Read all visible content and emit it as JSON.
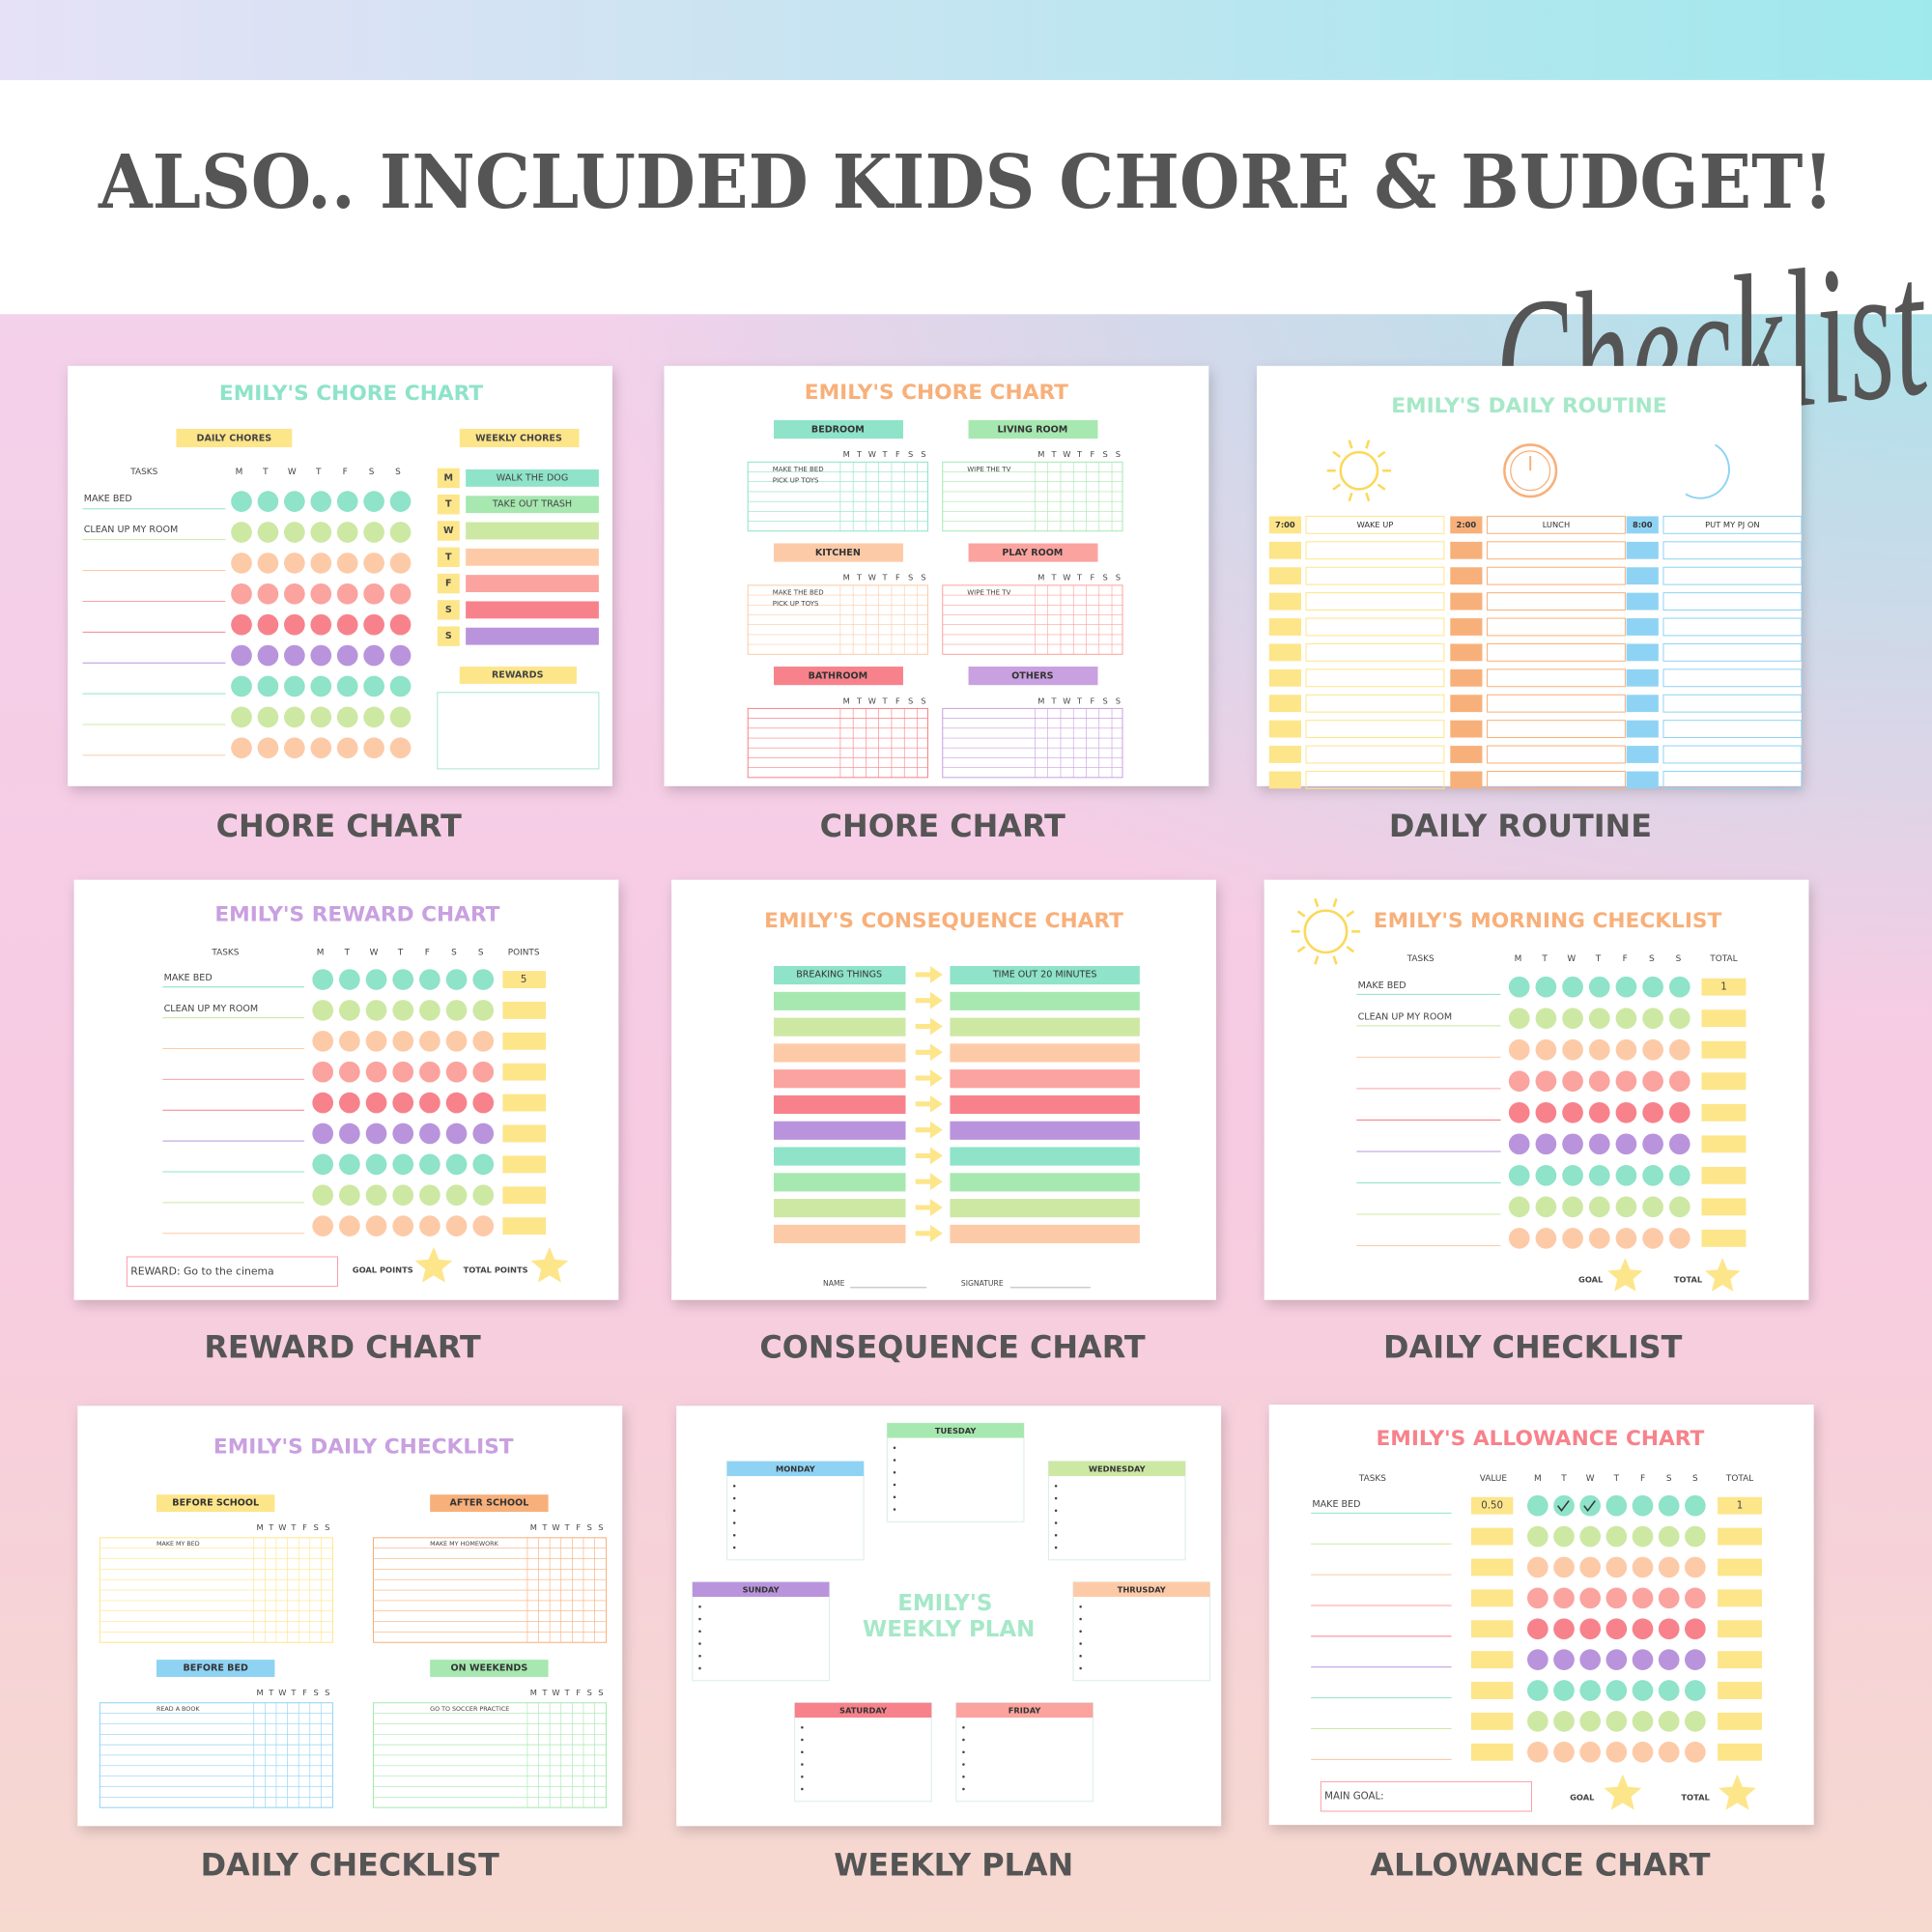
{
  "header": {
    "title": "ALSO.. INCLUDED KIDS CHORE & BUDGET!",
    "script": "Checklist"
  },
  "cards": [
    {
      "caption": "CHORE CHART",
      "title": "EMILY'S CHORE CHART",
      "daily_label": "DAILY CHORES",
      "weekly_label": "WEEKLY CHORES",
      "tasks_label": "TASKS",
      "days": [
        "M",
        "T",
        "W",
        "T",
        "F",
        "S",
        "S"
      ],
      "tasks": [
        "MAKE BED",
        "CLEAN UP MY ROOM"
      ],
      "week_days": [
        "M",
        "T",
        "W",
        "T",
        "F",
        "S",
        "S"
      ],
      "weekly_tasks": [
        "WALK THE DOG",
        "TAKE OUT TRASH"
      ],
      "rewards_label": "REWARDS"
    },
    {
      "caption": "CHORE CHART",
      "title": "EMILY'S CHORE CHART",
      "days": [
        "M",
        "T",
        "W",
        "T",
        "F",
        "S",
        "S"
      ],
      "sections": [
        {
          "name": "BEDROOM",
          "tasks": [
            "MAKE THE BED",
            "PICK UP TOYS"
          ]
        },
        {
          "name": "LIVING ROOM",
          "tasks": [
            "WIPE THE TV"
          ]
        },
        {
          "name": "KITCHEN",
          "tasks": [
            "MAKE THE BED",
            "PICK UP TOYS"
          ]
        },
        {
          "name": "PLAY ROOM",
          "tasks": [
            "WIPE THE TV"
          ]
        },
        {
          "name": "BATHROOM",
          "tasks": []
        },
        {
          "name": "OTHERS",
          "tasks": []
        }
      ]
    },
    {
      "caption": "DAILY ROUTINE",
      "title": "EMILY'S DAILY ROUTINE",
      "columns": [
        {
          "time": "7:00",
          "task": "WAKE UP"
        },
        {
          "time": "2:00",
          "task": "LUNCH"
        },
        {
          "time": "8:00",
          "task": "PUT MY PJ ON"
        }
      ]
    },
    {
      "caption": "REWARD CHART",
      "title": "EMILY'S REWARD CHART",
      "tasks_label": "TASKS",
      "days": [
        "M",
        "T",
        "W",
        "T",
        "F",
        "S",
        "S"
      ],
      "points_label": "POINTS",
      "tasks": [
        "MAKE BED",
        "CLEAN UP MY ROOM"
      ],
      "points": [
        "5"
      ],
      "reward": "REWARD: Go to the cinema",
      "goal_label": "GOAL POINTS",
      "total_label": "TOTAL POINTS"
    },
    {
      "caption": "CONSEQUENCE CHART",
      "title": "EMILY'S CONSEQUENCE CHART",
      "behavior": "BREAKING THINGS",
      "consequence": "TIME OUT 20 MINUTES",
      "name_label": "NAME",
      "signature_label": "SIGNATURE"
    },
    {
      "caption": "DAILY CHECKLIST",
      "title": "EMILY'S MORNING CHECKLIST",
      "tasks_label": "TASKS",
      "days": [
        "M",
        "T",
        "W",
        "T",
        "F",
        "S",
        "S"
      ],
      "total_label": "TOTAL",
      "tasks": [
        "MAKE BED",
        "CLEAN UP MY ROOM"
      ],
      "totals": [
        "1"
      ],
      "goal_label": "GOAL",
      "total_footer": "TOTAL"
    },
    {
      "caption": "DAILY CHECKLIST",
      "title": "EMILY'S DAILY CHECKLIST",
      "days": [
        "M",
        "T",
        "W",
        "T",
        "F",
        "S",
        "S"
      ],
      "sections": [
        {
          "name": "BEFORE SCHOOL",
          "task": "MAKE MY BED"
        },
        {
          "name": "AFTER SCHOOL",
          "task": "MAKE MY HOMEWORK"
        },
        {
          "name": "BEFORE BED",
          "task": "READ A BOOK"
        },
        {
          "name": "ON WEEKENDS",
          "task": "GO TO SOCCER PRACTICE"
        }
      ]
    },
    {
      "caption": "WEEKLY PLAN",
      "title": [
        "EMILY'S",
        "WEEKLY PLAN"
      ],
      "days": [
        "TUESDAY",
        "MONDAY",
        "WEDNESDAY",
        "SUNDAY",
        "THRUSDAY",
        "SATURDAY",
        "FRIDAY"
      ]
    },
    {
      "caption": "ALLOWANCE CHART",
      "title": "EMILY'S ALLOWANCE CHART",
      "tasks_label": "TASKS",
      "value_label": "VALUE",
      "days": [
        "M",
        "T",
        "W",
        "T",
        "F",
        "S",
        "S"
      ],
      "total_label": "TOTAL",
      "tasks": [
        "MAKE BED"
      ],
      "values": [
        "0.50"
      ],
      "totals": [
        "1"
      ],
      "goal_text": "MAIN GOAL:",
      "goal_label": "GOAL",
      "total_footer": "TOTAL"
    }
  ]
}
